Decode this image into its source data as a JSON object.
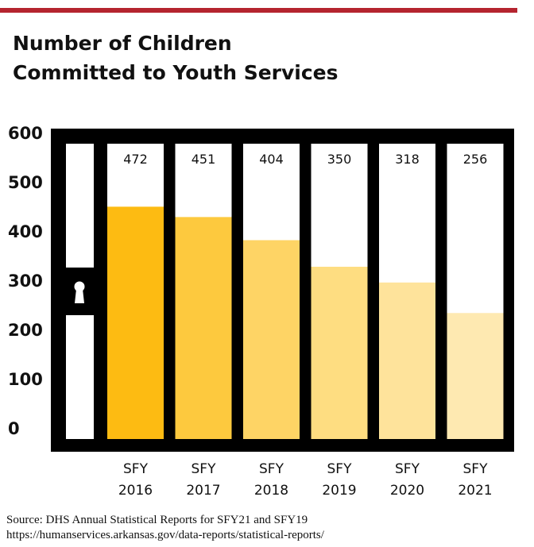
{
  "title_lines": [
    "Number of Children",
    "Committed to Youth Services"
  ],
  "chart_data": {
    "type": "bar",
    "title": "Number of Children Committed to Youth Services",
    "categories": [
      [
        "SFY",
        "2016"
      ],
      [
        "SFY",
        "2017"
      ],
      [
        "SFY",
        "2018"
      ],
      [
        "SFY",
        "2019"
      ],
      [
        "SFY",
        "2020"
      ],
      [
        "SFY",
        "2021"
      ]
    ],
    "values": [
      472,
      451,
      404,
      350,
      318,
      256
    ],
    "data_labels": [
      "472",
      "451",
      "404",
      "350",
      "318",
      "256"
    ],
    "ylim": [
      0,
      600
    ],
    "yticks": [
      0,
      100,
      200,
      300,
      400,
      500,
      600
    ],
    "xlabel": "",
    "ylabel": "",
    "grid": false,
    "bar_colors": [
      "#fdbb12",
      "#fdc93e",
      "#fed465",
      "#fedd81",
      "#fee39b",
      "#fee9b1"
    ],
    "frame_color": "#000000",
    "decoration": "keyhole-icon"
  },
  "source_lines": [
    "Source: DHS Annual Statistical Reports for SFY21 and SFY19",
    "https://humanservices.arkansas.gov/data-reports/statistical-reports/"
  ]
}
